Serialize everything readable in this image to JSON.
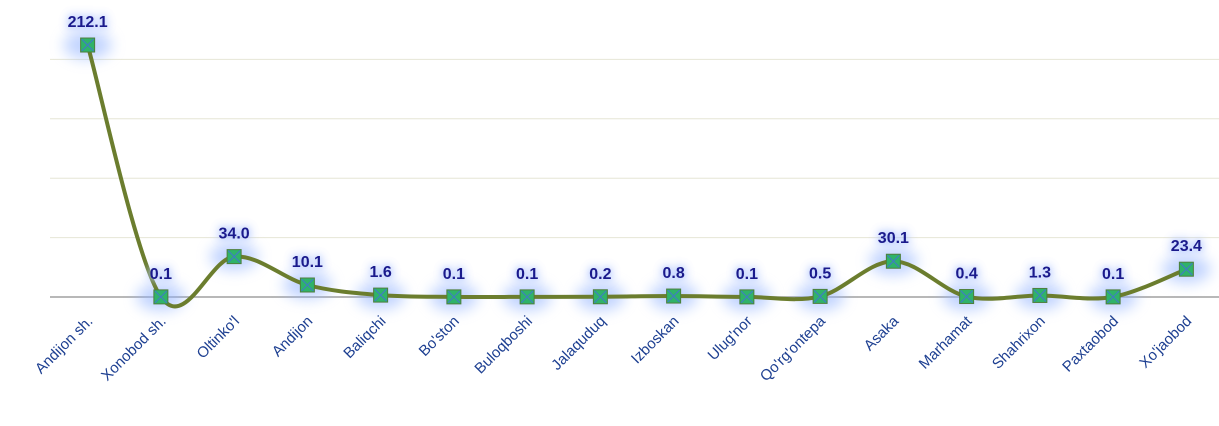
{
  "chart_data": {
    "type": "line",
    "categories": [
      "Andijon sh.",
      "Xonobod sh.",
      "Oltinko'l",
      "Andijon",
      "Baliqchi",
      "Bo'ston",
      "Buloqboshi",
      "Jalaquduq",
      "Izboskan",
      "Ulug'nor",
      "Qo'rg'ontepa",
      "Asaka",
      "Marhamat",
      "Shahrixon",
      "Paxtaobod",
      "Xo'jaobod"
    ],
    "values": [
      212.1,
      0.1,
      34.0,
      10.1,
      1.6,
      0.1,
      0.1,
      0.2,
      0.8,
      0.1,
      0.5,
      30.1,
      0.4,
      1.3,
      0.1,
      23.4
    ],
    "value_labels": [
      "212.1",
      "0.1",
      "34.0",
      "10.1",
      "1.6",
      "0.1",
      "0.1",
      "0.2",
      "0.8",
      "0.1",
      "0.5",
      "30.1",
      "0.4",
      "1.3",
      "0.1",
      "23.4"
    ],
    "color": "#6b7d2e",
    "ylim": [
      0,
      250
    ],
    "yticks": [
      0,
      50,
      100,
      150,
      200
    ],
    "grid": true
  }
}
